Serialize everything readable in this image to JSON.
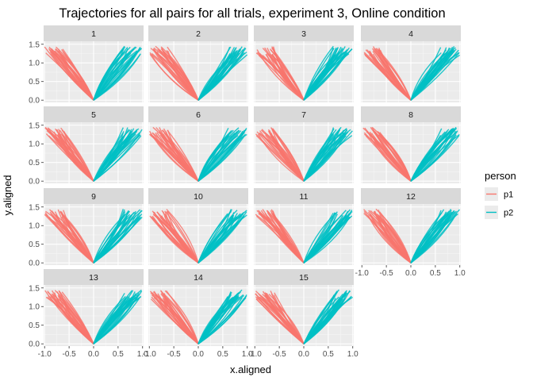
{
  "chart_data": {
    "type": "line",
    "title": "Trajectories for all pairs for all trials, experiment 3, Online condition",
    "xlabel": "x.aligned",
    "ylabel": "y.aligned",
    "xlim": [
      -1.02,
      1.02
    ],
    "ylim": [
      -0.06,
      1.58
    ],
    "x_ticks": [
      -1.0,
      -0.5,
      0.0,
      0.5,
      1.0
    ],
    "x_tick_labels": [
      "-1.0",
      "-0.5",
      "0.0",
      "0.5",
      "1.0"
    ],
    "y_ticks": [
      0.0,
      0.5,
      1.0,
      1.5
    ],
    "y_tick_labels": [
      "0.0",
      "0.5",
      "1.0",
      "1.5"
    ],
    "grid": true,
    "facets": [
      "1",
      "2",
      "3",
      "4",
      "5",
      "6",
      "7",
      "8",
      "9",
      "10",
      "11",
      "12",
      "13",
      "14",
      "15"
    ],
    "facet_columns": 4,
    "legend": {
      "title": "person",
      "position": "right",
      "entries": [
        {
          "label": "p1",
          "color": "#F8766D"
        },
        {
          "label": "p2",
          "color": "#00BFC4"
        }
      ]
    },
    "series": [
      {
        "name": "p1",
        "color": "#F8766D",
        "path_x": [
          -0.9,
          0.0
        ],
        "path_y": [
          1.42,
          0.0
        ],
        "typical_start_x": [
          -1.0,
          -0.6
        ],
        "typical_start_y": [
          1.2,
          1.45
        ]
      },
      {
        "name": "p2",
        "color": "#00BFC4",
        "path_x": [
          0.0,
          0.85
        ],
        "path_y": [
          0.0,
          1.42
        ],
        "typical_end_x": [
          0.6,
          1.0
        ],
        "typical_end_y": [
          1.2,
          1.45
        ]
      }
    ]
  }
}
